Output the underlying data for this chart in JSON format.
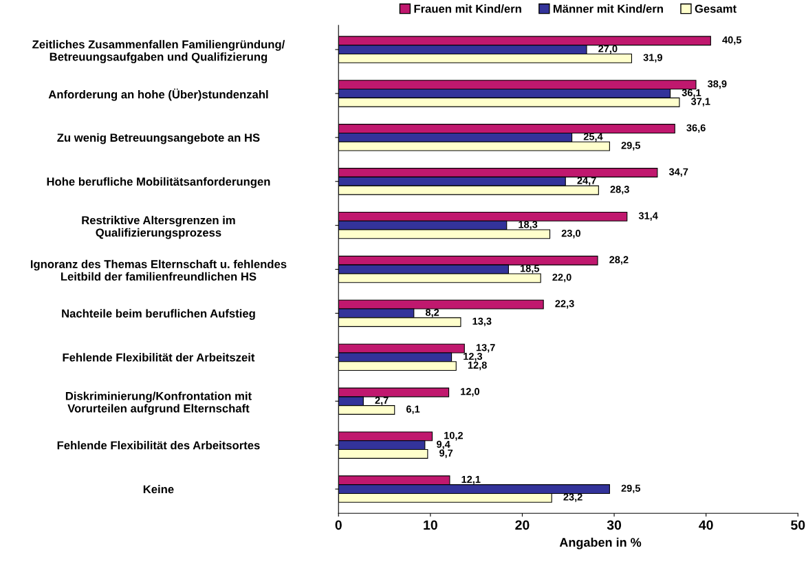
{
  "chart_data": {
    "type": "bar",
    "orientation": "horizontal",
    "xlabel": "Angaben in %",
    "categories": [
      "Zeitliches Zusammenfallen Familiengründung/\nBetreuungsaufgaben und Qualifizierung",
      "Anforderung an hohe (Über)stundenzahl",
      "Zu wenig Betreuungsangebote an HS",
      "Hohe berufliche Mobilitätsanforderungen",
      "Restriktive Altersgrenzen im\nQualifizierungsprozess",
      "Ignoranz des Themas Elternschaft u. fehlendes\nLeitbild der familienfreundlichen HS",
      "Nachteile beim beruflichen Aufstieg",
      "Fehlende Flexibilität der Arbeitszeit",
      "Diskriminierung/Konfrontation mit\nVorurteilen aufgrund Elternschaft",
      "Fehlende Flexibilität des Arbeitsortes",
      "Keine"
    ],
    "series": [
      {
        "name": "Frauen mit Kind/ern",
        "color": "#c0186e",
        "values": [
          40.5,
          38.9,
          36.6,
          34.7,
          31.4,
          28.2,
          22.3,
          13.7,
          12.0,
          10.2,
          12.1
        ],
        "value_labels": [
          "40,5",
          "38,9",
          "36,6",
          "34,7",
          "31,4",
          "28,2",
          "22,3",
          "13,7",
          "12,0",
          "10,2",
          "12,1"
        ]
      },
      {
        "name": "Männer mit Kind/ern",
        "color": "#33339a",
        "values": [
          27.0,
          36.1,
          25.4,
          24.7,
          18.3,
          18.5,
          8.2,
          12.3,
          2.7,
          9.4,
          29.5
        ],
        "value_labels": [
          "27,0",
          "36,1",
          "25,4",
          "24,7",
          "18,3",
          "18,5",
          "8,2",
          "12,3",
          "2,7",
          "9,4",
          "29,5"
        ]
      },
      {
        "name": "Gesamt",
        "color": "#ffffcc",
        "values": [
          31.9,
          37.1,
          29.5,
          28.3,
          23.0,
          22.0,
          13.3,
          12.8,
          6.1,
          9.7,
          23.2
        ],
        "value_labels": [
          "31,9",
          "37,1",
          "29,5",
          "28,3",
          "23,0",
          "22,0",
          "13,3",
          "12,8",
          "6,1",
          "9,7",
          "23,2"
        ]
      }
    ],
    "xlim": [
      0,
      50
    ],
    "xticks": [
      0,
      10,
      20,
      30,
      40,
      50
    ],
    "grid": false,
    "legend": "top"
  }
}
